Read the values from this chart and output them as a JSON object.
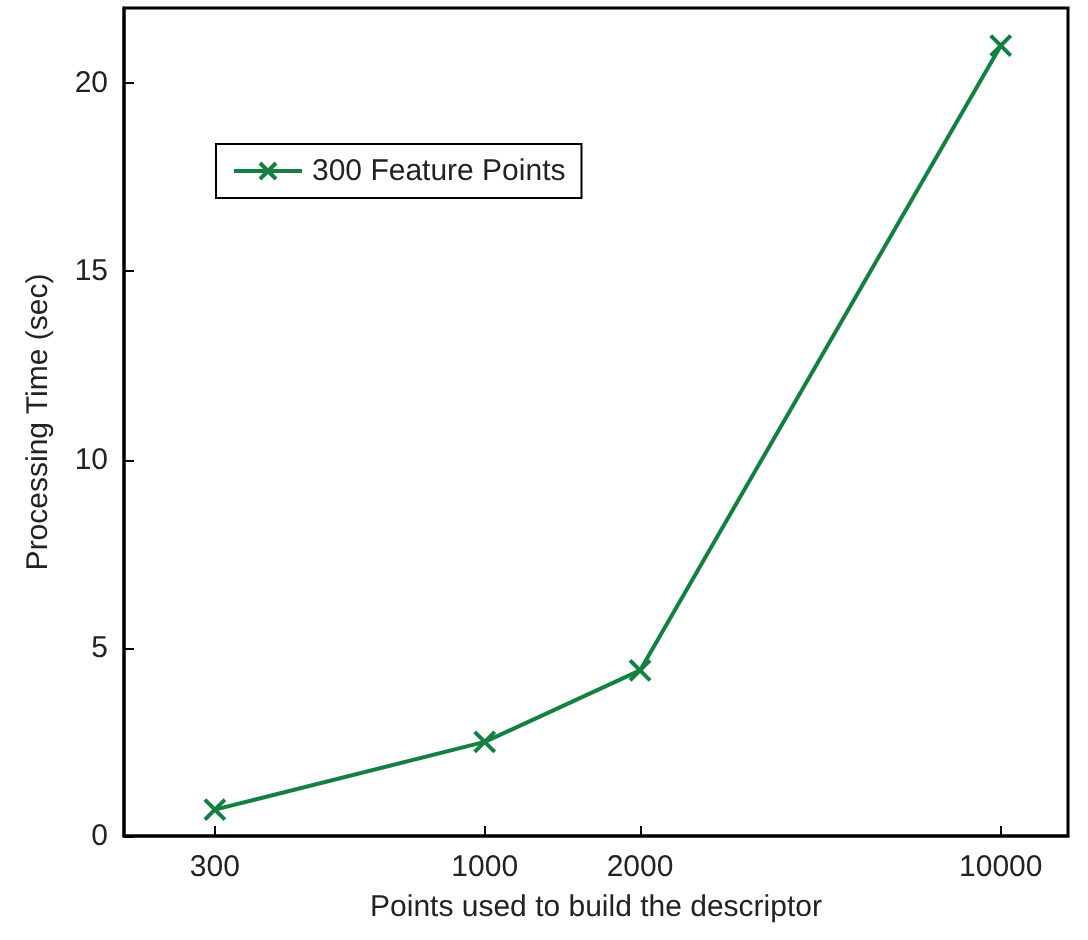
{
  "chart_data": {
    "type": "line",
    "xlabel": "Points used to build the descriptor",
    "ylabel": "Processing Time (sec)",
    "x": [
      300,
      1000,
      2000,
      10000
    ],
    "series": [
      {
        "name": "300 Feature Points",
        "color": "#138040",
        "values": [
          0.7,
          2.5,
          4.4,
          21
        ]
      }
    ],
    "log": "x",
    "xlim": [
      200,
      13500
    ],
    "xticks": [
      300,
      1000,
      2000,
      10000
    ],
    "ylim": [
      0,
      22
    ],
    "yticks": [
      0,
      5,
      10,
      15,
      20
    ],
    "grid": false,
    "legend": "top left",
    "marker": "cross",
    "line_style": "solid"
  }
}
